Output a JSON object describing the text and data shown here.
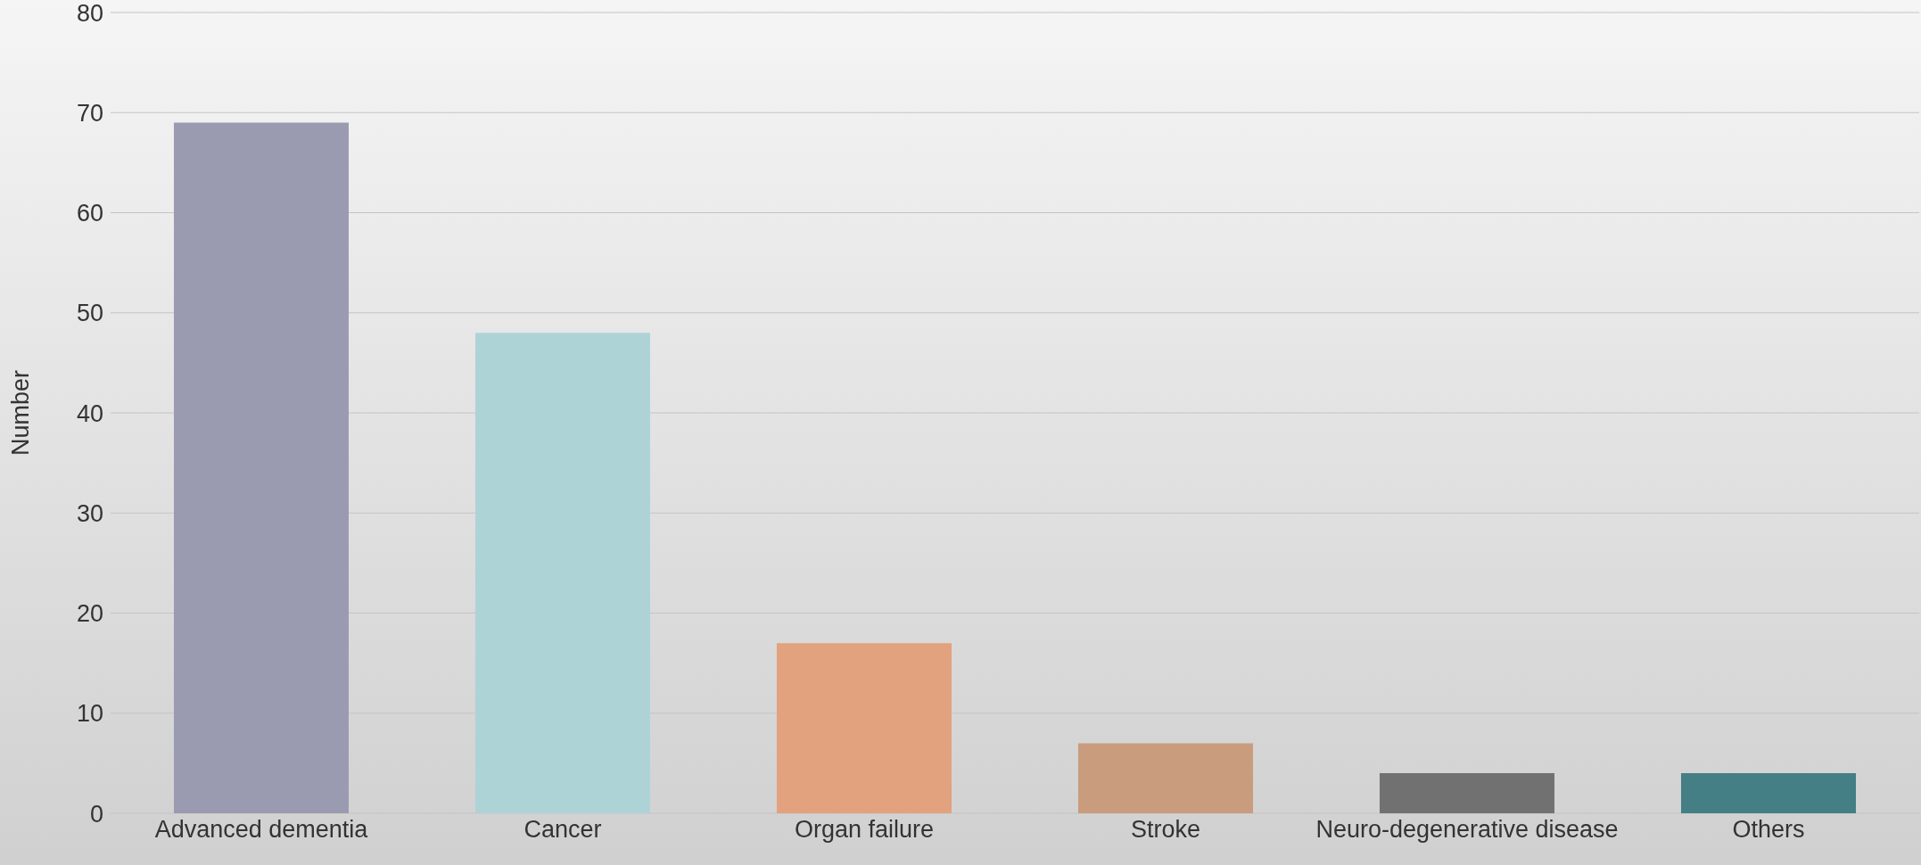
{
  "chart_data": {
    "type": "bar",
    "ylabel": "Number",
    "categories": [
      "Advanced dementia",
      "Cancer",
      "Organ failure",
      "Stroke",
      "Neuro-degenerative disease",
      "Others"
    ],
    "values": [
      69,
      48,
      17,
      7,
      4,
      4
    ],
    "colors": [
      "#9a9bb0",
      "#aed3d6",
      "#e2a27e",
      "#c99c7e",
      "#717171",
      "#437f85"
    ],
    "ylim": [
      0,
      80
    ],
    "yticks": [
      0,
      10,
      20,
      30,
      40,
      50,
      60,
      70,
      80
    ],
    "grid": "y",
    "legend": false
  }
}
